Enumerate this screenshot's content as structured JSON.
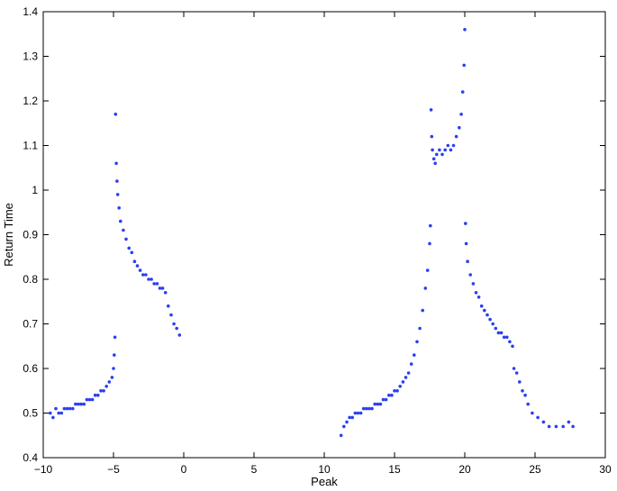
{
  "chart_data": {
    "type": "scatter",
    "xlabel": "Peak",
    "ylabel": "Return Time",
    "xlim": [
      -10,
      30
    ],
    "ylim": [
      0.4,
      1.4
    ],
    "xticks": [
      -10,
      -5,
      0,
      5,
      10,
      15,
      20,
      25,
      30
    ],
    "yticks": [
      0.4,
      0.5,
      0.6,
      0.7,
      0.8,
      0.9,
      1.0,
      1.1,
      1.2,
      1.3,
      1.4
    ],
    "xtick_labels": [
      "−10",
      "−5",
      "0",
      "5",
      "10",
      "15",
      "20",
      "25",
      "30"
    ],
    "ytick_labels": [
      "0.4",
      "0.5",
      "0.6",
      "0.7",
      "0.8",
      "0.9",
      "1",
      "1.1",
      "1.2",
      "1.3",
      "1.4"
    ],
    "grid": false,
    "legend": "none",
    "marker_color": "#2b3ff2",
    "series": [
      {
        "values": [
          [
            -9.5,
            0.5
          ],
          [
            -9.3,
            0.49
          ],
          [
            -9.1,
            0.51
          ],
          [
            -8.9,
            0.5
          ],
          [
            -8.7,
            0.5
          ],
          [
            -8.5,
            0.51
          ],
          [
            -8.3,
            0.51
          ],
          [
            -8.1,
            0.51
          ],
          [
            -7.9,
            0.51
          ],
          [
            -7.7,
            0.52
          ],
          [
            -7.5,
            0.52
          ],
          [
            -7.3,
            0.52
          ],
          [
            -7.1,
            0.52
          ],
          [
            -6.9,
            0.53
          ],
          [
            -6.7,
            0.53
          ],
          [
            -6.5,
            0.53
          ],
          [
            -6.3,
            0.54
          ],
          [
            -6.1,
            0.54
          ],
          [
            -5.9,
            0.55
          ],
          [
            -5.7,
            0.55
          ],
          [
            -5.5,
            0.56
          ],
          [
            -5.3,
            0.57
          ],
          [
            -5.1,
            0.58
          ],
          [
            -5.0,
            0.6
          ],
          [
            -4.95,
            0.63
          ],
          [
            -4.9,
            0.67
          ],
          [
            -4.85,
            1.17
          ],
          [
            -4.8,
            1.06
          ],
          [
            -4.75,
            1.02
          ],
          [
            -4.7,
            0.99
          ],
          [
            -4.6,
            0.96
          ],
          [
            -4.5,
            0.93
          ],
          [
            -4.3,
            0.91
          ],
          [
            -4.1,
            0.89
          ],
          [
            -3.9,
            0.87
          ],
          [
            -3.7,
            0.86
          ],
          [
            -3.5,
            0.84
          ],
          [
            -3.3,
            0.83
          ],
          [
            -3.1,
            0.82
          ],
          [
            -2.9,
            0.81
          ],
          [
            -2.7,
            0.81
          ],
          [
            -2.5,
            0.8
          ],
          [
            -2.3,
            0.8
          ],
          [
            -2.1,
            0.79
          ],
          [
            -1.9,
            0.79
          ],
          [
            -1.7,
            0.78
          ],
          [
            -1.5,
            0.78
          ],
          [
            -1.3,
            0.77
          ],
          [
            -1.1,
            0.74
          ],
          [
            -0.9,
            0.72
          ],
          [
            -0.7,
            0.7
          ],
          [
            -0.5,
            0.69
          ],
          [
            -0.3,
            0.675
          ],
          [
            11.2,
            0.45
          ],
          [
            11.4,
            0.47
          ],
          [
            11.6,
            0.48
          ],
          [
            11.8,
            0.49
          ],
          [
            12.0,
            0.49
          ],
          [
            12.2,
            0.5
          ],
          [
            12.4,
            0.5
          ],
          [
            12.6,
            0.5
          ],
          [
            12.8,
            0.51
          ],
          [
            13.0,
            0.51
          ],
          [
            13.2,
            0.51
          ],
          [
            13.4,
            0.51
          ],
          [
            13.6,
            0.52
          ],
          [
            13.8,
            0.52
          ],
          [
            14.0,
            0.52
          ],
          [
            14.2,
            0.53
          ],
          [
            14.4,
            0.53
          ],
          [
            14.6,
            0.54
          ],
          [
            14.8,
            0.54
          ],
          [
            15.0,
            0.55
          ],
          [
            15.2,
            0.55
          ],
          [
            15.4,
            0.56
          ],
          [
            15.6,
            0.57
          ],
          [
            15.8,
            0.58
          ],
          [
            16.0,
            0.59
          ],
          [
            16.2,
            0.61
          ],
          [
            16.4,
            0.63
          ],
          [
            16.6,
            0.66
          ],
          [
            16.8,
            0.69
          ],
          [
            17.0,
            0.73
          ],
          [
            17.2,
            0.78
          ],
          [
            17.35,
            0.82
          ],
          [
            17.5,
            0.88
          ],
          [
            17.55,
            0.92
          ],
          [
            17.6,
            1.18
          ],
          [
            17.65,
            1.12
          ],
          [
            17.7,
            1.09
          ],
          [
            17.8,
            1.07
          ],
          [
            17.9,
            1.06
          ],
          [
            18.0,
            1.08
          ],
          [
            18.2,
            1.09
          ],
          [
            18.4,
            1.08
          ],
          [
            18.6,
            1.09
          ],
          [
            18.8,
            1.1
          ],
          [
            19.0,
            1.09
          ],
          [
            19.2,
            1.1
          ],
          [
            19.4,
            1.12
          ],
          [
            19.6,
            1.14
          ],
          [
            19.75,
            1.17
          ],
          [
            19.85,
            1.22
          ],
          [
            19.95,
            1.28
          ],
          [
            20.0,
            1.36
          ],
          [
            20.05,
            0.925
          ],
          [
            20.1,
            0.88
          ],
          [
            20.2,
            0.84
          ],
          [
            20.4,
            0.81
          ],
          [
            20.6,
            0.79
          ],
          [
            20.8,
            0.77
          ],
          [
            21.0,
            0.76
          ],
          [
            21.2,
            0.74
          ],
          [
            21.4,
            0.73
          ],
          [
            21.6,
            0.72
          ],
          [
            21.8,
            0.71
          ],
          [
            22.0,
            0.7
          ],
          [
            22.2,
            0.69
          ],
          [
            22.4,
            0.68
          ],
          [
            22.6,
            0.68
          ],
          [
            22.8,
            0.67
          ],
          [
            23.0,
            0.67
          ],
          [
            23.2,
            0.66
          ],
          [
            23.4,
            0.65
          ],
          [
            23.5,
            0.6
          ],
          [
            23.7,
            0.59
          ],
          [
            23.9,
            0.57
          ],
          [
            24.1,
            0.55
          ],
          [
            24.3,
            0.54
          ],
          [
            24.5,
            0.52
          ],
          [
            24.8,
            0.5
          ],
          [
            25.2,
            0.49
          ],
          [
            25.6,
            0.48
          ],
          [
            26.0,
            0.47
          ],
          [
            26.5,
            0.47
          ],
          [
            27.0,
            0.47
          ],
          [
            27.4,
            0.48
          ],
          [
            27.7,
            0.47
          ]
        ]
      }
    ]
  }
}
